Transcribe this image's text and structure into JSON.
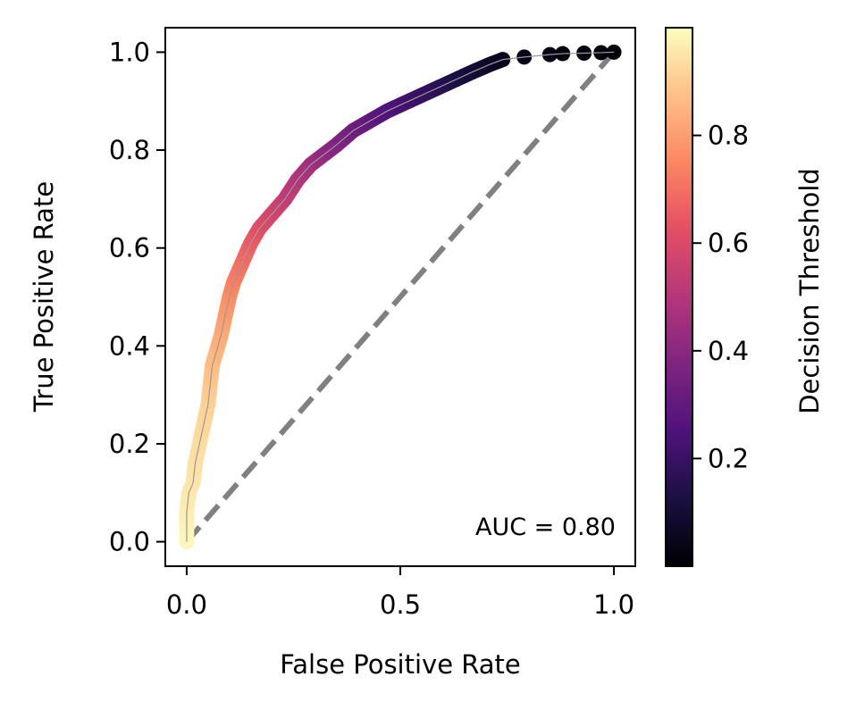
{
  "chart_data": {
    "type": "scatter",
    "title": "",
    "xlabel": "False Positive Rate",
    "ylabel": "True Positive Rate",
    "xlim": [
      -0.05,
      1.05
    ],
    "ylim": [
      -0.05,
      1.05
    ],
    "x_ticks": [
      0.0,
      0.5,
      1.0
    ],
    "x_tick_labels": [
      "0.0",
      "0.5",
      "1.0"
    ],
    "y_ticks": [
      0.0,
      0.2,
      0.4,
      0.6,
      0.8,
      1.0
    ],
    "y_tick_labels": [
      "0.0",
      "0.2",
      "0.4",
      "0.6",
      "0.8",
      "1.0"
    ],
    "grid": false,
    "annotation": "AUC = 0.80",
    "annotation_position": "bottom-right",
    "diagonal": {
      "x": [
        0,
        1
      ],
      "y": [
        0,
        1
      ],
      "style": "dashed",
      "color": "#808080"
    },
    "series": [
      {
        "name": "ROC curve",
        "colormap": "magma",
        "points": [
          {
            "x": 0.0,
            "y": 0.0,
            "t": 0.99
          },
          {
            "x": 0.0,
            "y": 0.04,
            "t": 0.98
          },
          {
            "x": 0.0,
            "y": 0.06,
            "t": 0.97
          },
          {
            "x": 0.005,
            "y": 0.1,
            "t": 0.96
          },
          {
            "x": 0.015,
            "y": 0.12,
            "t": 0.95
          },
          {
            "x": 0.02,
            "y": 0.16,
            "t": 0.94
          },
          {
            "x": 0.03,
            "y": 0.2,
            "t": 0.93
          },
          {
            "x": 0.04,
            "y": 0.24,
            "t": 0.92
          },
          {
            "x": 0.05,
            "y": 0.28,
            "t": 0.91
          },
          {
            "x": 0.055,
            "y": 0.32,
            "t": 0.89
          },
          {
            "x": 0.06,
            "y": 0.36,
            "t": 0.87
          },
          {
            "x": 0.07,
            "y": 0.39,
            "t": 0.85
          },
          {
            "x": 0.08,
            "y": 0.42,
            "t": 0.83
          },
          {
            "x": 0.09,
            "y": 0.46,
            "t": 0.8
          },
          {
            "x": 0.1,
            "y": 0.5,
            "t": 0.77
          },
          {
            "x": 0.11,
            "y": 0.53,
            "t": 0.74
          },
          {
            "x": 0.13,
            "y": 0.57,
            "t": 0.7
          },
          {
            "x": 0.15,
            "y": 0.61,
            "t": 0.66
          },
          {
            "x": 0.17,
            "y": 0.64,
            "t": 0.62
          },
          {
            "x": 0.2,
            "y": 0.67,
            "t": 0.58
          },
          {
            "x": 0.23,
            "y": 0.7,
            "t": 0.54
          },
          {
            "x": 0.26,
            "y": 0.74,
            "t": 0.5
          },
          {
            "x": 0.29,
            "y": 0.77,
            "t": 0.46
          },
          {
            "x": 0.32,
            "y": 0.79,
            "t": 0.42
          },
          {
            "x": 0.35,
            "y": 0.81,
            "t": 0.38
          },
          {
            "x": 0.39,
            "y": 0.84,
            "t": 0.34
          },
          {
            "x": 0.43,
            "y": 0.86,
            "t": 0.3
          },
          {
            "x": 0.47,
            "y": 0.88,
            "t": 0.26
          },
          {
            "x": 0.52,
            "y": 0.9,
            "t": 0.22
          },
          {
            "x": 0.57,
            "y": 0.92,
            "t": 0.18
          },
          {
            "x": 0.62,
            "y": 0.94,
            "t": 0.14
          },
          {
            "x": 0.67,
            "y": 0.96,
            "t": 0.1
          },
          {
            "x": 0.71,
            "y": 0.975,
            "t": 0.07
          },
          {
            "x": 0.74,
            "y": 0.985,
            "t": 0.05
          },
          {
            "x": 0.79,
            "y": 0.99,
            "t": 0.04
          },
          {
            "x": 0.85,
            "y": 0.995,
            "t": 0.03
          },
          {
            "x": 0.88,
            "y": 0.997,
            "t": 0.02
          },
          {
            "x": 0.93,
            "y": 0.998,
            "t": 0.015
          },
          {
            "x": 0.97,
            "y": 0.999,
            "t": 0.01
          },
          {
            "x": 1.0,
            "y": 1.0,
            "t": 0.0
          }
        ]
      }
    ],
    "colorbar": {
      "label": "Decision Threshold",
      "colormap": "magma",
      "range": [
        0.0,
        1.0
      ],
      "ticks": [
        0.2,
        0.4,
        0.6,
        0.8
      ],
      "tick_labels": [
        "0.2",
        "0.4",
        "0.6",
        "0.8"
      ]
    }
  }
}
